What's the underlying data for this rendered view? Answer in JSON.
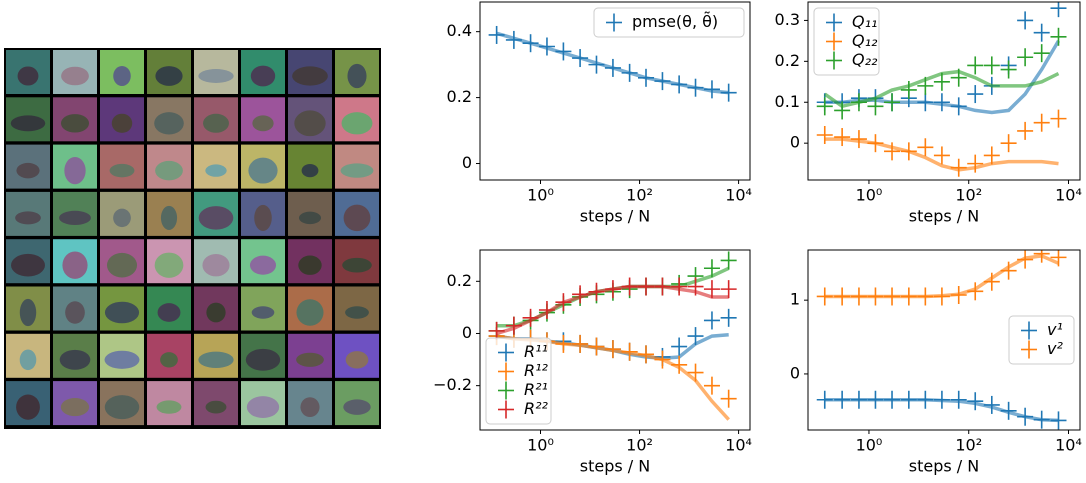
{
  "chart_data": [
    {
      "type": "line",
      "xlabel": "steps / N",
      "xscale": "log",
      "legend": "upper right",
      "xlim": [
        0.06,
        17000
      ],
      "xticks": [
        {
          "value": 1,
          "label": "10⁰"
        },
        {
          "value": 100,
          "label": "10²"
        },
        {
          "value": 10000,
          "label": "10⁴"
        }
      ],
      "ylim": [
        -0.05,
        0.49
      ],
      "yticks": [
        0.0,
        0.2,
        0.4
      ],
      "x": [
        0.13,
        0.29,
        0.63,
        1.35,
        2.9,
        6.3,
        13.5,
        29,
        63,
        135,
        290,
        630,
        1350,
        2900,
        6300
      ],
      "series": [
        {
          "name": "pmse(θ, θ̃)",
          "color": "#1f77b4",
          "values": [
            0.39,
            0.375,
            0.365,
            0.355,
            0.34,
            0.32,
            0.3,
            0.29,
            0.275,
            0.26,
            0.25,
            0.24,
            0.23,
            0.225,
            0.215
          ],
          "line_values": [
            0.395,
            0.38,
            0.365,
            0.35,
            0.335,
            0.32,
            0.305,
            0.29,
            0.275,
            0.26,
            0.25,
            0.24,
            0.23,
            0.22,
            0.215
          ]
        }
      ]
    },
    {
      "type": "line",
      "xlabel": "steps / N",
      "xscale": "log",
      "legend": "upper left",
      "xlim": [
        0.06,
        17000
      ],
      "xticks": [
        {
          "value": 1,
          "label": "10⁰"
        },
        {
          "value": 100,
          "label": "10²"
        },
        {
          "value": 10000,
          "label": "10⁴"
        }
      ],
      "ylim": [
        -0.09,
        0.345
      ],
      "yticks": [
        0.0,
        0.1,
        0.2,
        0.3
      ],
      "x": [
        0.13,
        0.29,
        0.63,
        1.35,
        2.9,
        6.3,
        13.5,
        29,
        63,
        135,
        290,
        630,
        1350,
        2900,
        6300
      ],
      "series": [
        {
          "name": "Q₁₁",
          "color": "#1f77b4",
          "values": [
            0.1,
            0.1,
            0.11,
            0.11,
            0.1,
            0.11,
            0.1,
            0.1,
            0.09,
            0.12,
            0.14,
            0.19,
            0.3,
            0.27,
            0.33
          ],
          "line_values": [
            0.1,
            0.1,
            0.105,
            0.105,
            0.1,
            0.1,
            0.1,
            0.095,
            0.09,
            0.08,
            0.075,
            0.08,
            0.12,
            0.18,
            0.25
          ]
        },
        {
          "name": "Q₁₂",
          "color": "#ff7f0e",
          "values": [
            0.02,
            0.015,
            0.01,
            0.0,
            -0.02,
            -0.02,
            -0.01,
            -0.03,
            -0.06,
            -0.05,
            -0.03,
            0.0,
            0.03,
            0.05,
            0.06
          ],
          "line_values": [
            0.01,
            0.01,
            0.005,
            0.0,
            -0.01,
            -0.02,
            -0.035,
            -0.055,
            -0.065,
            -0.06,
            -0.05,
            -0.045,
            -0.045,
            -0.045,
            -0.05
          ]
        },
        {
          "name": "Q₂₂",
          "color": "#2ca02c",
          "values": [
            0.09,
            0.08,
            0.1,
            0.09,
            0.1,
            0.13,
            0.14,
            0.15,
            0.16,
            0.19,
            0.19,
            0.18,
            0.21,
            0.22,
            0.26
          ],
          "line_values": [
            0.12,
            0.09,
            0.1,
            0.11,
            0.13,
            0.14,
            0.155,
            0.17,
            0.175,
            0.16,
            0.14,
            0.14,
            0.14,
            0.15,
            0.17
          ]
        }
      ]
    },
    {
      "type": "line",
      "xlabel": "steps / N",
      "xscale": "log",
      "legend": "lower left",
      "xlim": [
        0.06,
        17000
      ],
      "xticks": [
        {
          "value": 1,
          "label": "10⁰"
        },
        {
          "value": 100,
          "label": "10²"
        },
        {
          "value": 10000,
          "label": "10⁴"
        }
      ],
      "ylim": [
        -0.37,
        0.32
      ],
      "yticks": [
        {
          "value": -0.2,
          "label": "−0.2"
        },
        0.0,
        0.2
      ],
      "x": [
        0.13,
        0.29,
        0.63,
        1.35,
        2.9,
        6.3,
        13.5,
        29,
        63,
        135,
        290,
        630,
        1350,
        2900,
        6300
      ],
      "series": [
        {
          "name": "R¹¹",
          "color": "#1f77b4",
          "values": [
            -0.01,
            -0.02,
            -0.02,
            -0.03,
            -0.03,
            -0.04,
            -0.05,
            -0.06,
            -0.07,
            -0.08,
            -0.09,
            -0.05,
            -0.01,
            0.05,
            0.06
          ],
          "line_values": [
            -0.01,
            -0.02,
            -0.02,
            -0.03,
            -0.035,
            -0.045,
            -0.055,
            -0.065,
            -0.08,
            -0.09,
            -0.095,
            -0.09,
            -0.04,
            -0.01,
            -0.005
          ]
        },
        {
          "name": "R¹²",
          "color": "#ff7f0e",
          "values": [
            -0.01,
            -0.02,
            -0.02,
            -0.03,
            -0.04,
            -0.04,
            -0.05,
            -0.06,
            -0.07,
            -0.08,
            -0.1,
            -0.12,
            -0.15,
            -0.2,
            -0.25
          ],
          "line_values": [
            -0.01,
            -0.02,
            -0.025,
            -0.03,
            -0.04,
            -0.045,
            -0.055,
            -0.065,
            -0.075,
            -0.085,
            -0.1,
            -0.13,
            -0.18,
            -0.26,
            -0.33
          ]
        },
        {
          "name": "R²¹",
          "color": "#2ca02c",
          "values": [
            0.01,
            0.03,
            0.05,
            0.08,
            0.11,
            0.14,
            0.15,
            0.16,
            0.17,
            0.18,
            0.18,
            0.19,
            0.22,
            0.25,
            0.28
          ],
          "line_values": [
            0.03,
            0.03,
            0.05,
            0.08,
            0.11,
            0.14,
            0.16,
            0.17,
            0.18,
            0.18,
            0.18,
            0.18,
            0.2,
            0.22,
            0.25
          ]
        },
        {
          "name": "R²²",
          "color": "#d62728",
          "values": [
            0.01,
            0.03,
            0.06,
            0.09,
            0.12,
            0.15,
            0.16,
            0.17,
            0.18,
            0.18,
            0.18,
            0.18,
            0.18,
            0.17,
            0.17
          ],
          "line_values": [
            0.0,
            0.02,
            0.05,
            0.08,
            0.12,
            0.14,
            0.16,
            0.17,
            0.18,
            0.18,
            0.18,
            0.17,
            0.16,
            0.14,
            0.14
          ]
        }
      ]
    },
    {
      "type": "line",
      "xlabel": "steps / N",
      "xscale": "log",
      "legend": "center right",
      "xlim": [
        0.06,
        17000
      ],
      "xticks": [
        {
          "value": 1,
          "label": "10⁰"
        },
        {
          "value": 100,
          "label": "10²"
        },
        {
          "value": 10000,
          "label": "10⁴"
        }
      ],
      "ylim": [
        -0.76,
        1.68
      ],
      "yticks": [
        0,
        1
      ],
      "x": [
        0.13,
        0.29,
        0.63,
        1.35,
        2.9,
        6.3,
        13.5,
        29,
        63,
        135,
        290,
        630,
        1350,
        2900,
        6300
      ],
      "series": [
        {
          "name": "v¹",
          "color": "#1f77b4",
          "values": [
            -0.35,
            -0.35,
            -0.35,
            -0.35,
            -0.35,
            -0.35,
            -0.35,
            -0.35,
            -0.35,
            -0.37,
            -0.42,
            -0.5,
            -0.58,
            -0.62,
            -0.63
          ],
          "line_values": [
            -0.35,
            -0.35,
            -0.35,
            -0.35,
            -0.35,
            -0.35,
            -0.35,
            -0.36,
            -0.37,
            -0.4,
            -0.45,
            -0.52,
            -0.58,
            -0.62,
            -0.63
          ]
        },
        {
          "name": "v²",
          "color": "#ff7f0e",
          "values": [
            1.05,
            1.05,
            1.05,
            1.05,
            1.05,
            1.05,
            1.05,
            1.05,
            1.07,
            1.12,
            1.25,
            1.4,
            1.55,
            1.63,
            1.58
          ],
          "line_values": [
            1.05,
            1.05,
            1.05,
            1.05,
            1.05,
            1.05,
            1.05,
            1.06,
            1.08,
            1.15,
            1.3,
            1.45,
            1.57,
            1.6,
            1.5
          ]
        }
      ]
    }
  ]
}
